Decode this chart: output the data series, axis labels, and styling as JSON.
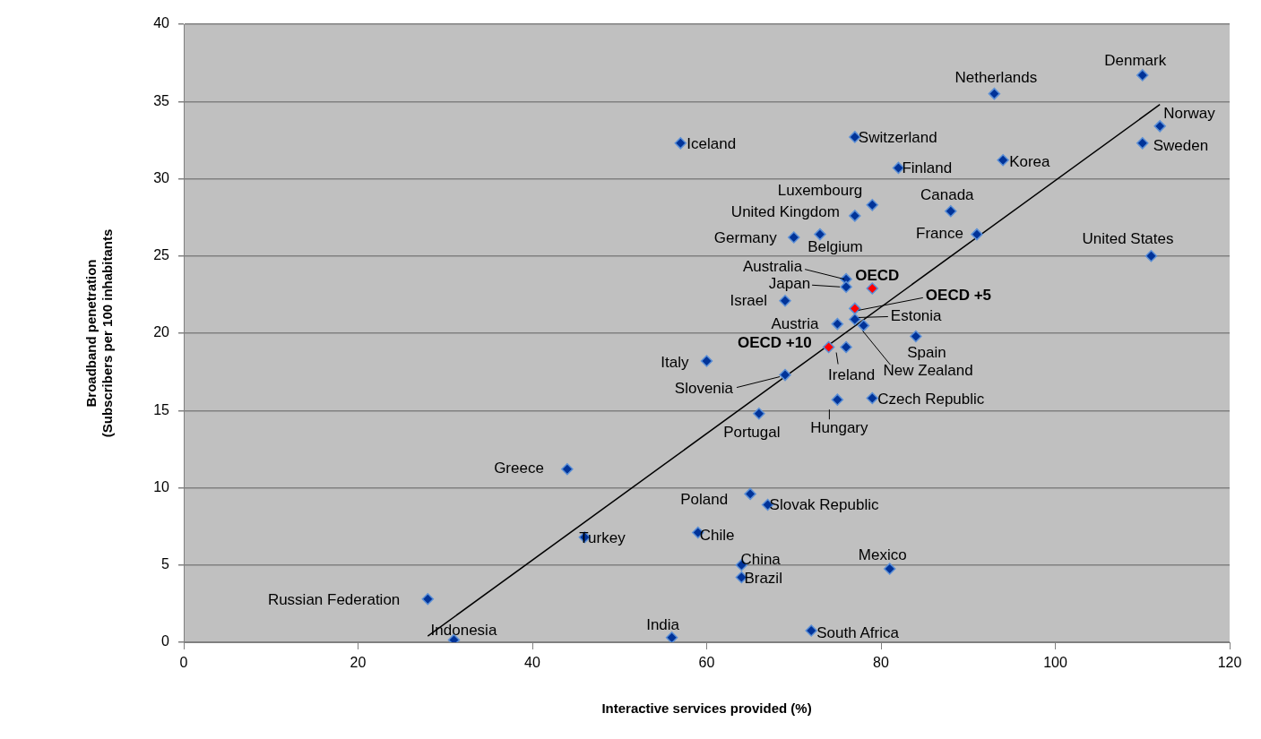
{
  "chart_data": {
    "type": "scatter",
    "xlabel": "Interactive services provided (%)",
    "ylabel": "Broadband penetration\n(Subscribers per 100 inhabitants",
    "xlim": [
      0,
      120
    ],
    "xticks": [
      0,
      20,
      40,
      60,
      80,
      100,
      120
    ],
    "ylim": [
      0,
      40
    ],
    "yticks": [
      0,
      5,
      10,
      15,
      20,
      25,
      30,
      35,
      40
    ],
    "grid": "y",
    "legend": false,
    "marker": "diamond",
    "series": [
      {
        "x": [
          110,
          93,
          112,
          110,
          57,
          77,
          94,
          82,
          79,
          88,
          77,
          70,
          73,
          91,
          111,
          76,
          76,
          79,
          69,
          77,
          77,
          75,
          78,
          84,
          74,
          76,
          60,
          69,
          79,
          75,
          66,
          44,
          65,
          67,
          46,
          59,
          64,
          64,
          81,
          28,
          31,
          56,
          72
        ],
        "values": [
          36.7,
          35.5,
          33.4,
          32.3,
          32.3,
          32.7,
          31.2,
          30.7,
          28.3,
          27.9,
          27.6,
          26.2,
          26.4,
          26.4,
          25.0,
          23.5,
          23.0,
          22.9,
          22.1,
          21.6,
          20.9,
          20.6,
          20.5,
          19.8,
          19.1,
          19.1,
          18.2,
          17.3,
          15.8,
          15.7,
          14.8,
          11.2,
          9.6,
          8.9,
          6.8,
          7.1,
          5.0,
          4.2,
          4.75,
          2.8,
          0.15,
          0.3,
          0.75
        ],
        "colors": [
          "#003399",
          "#003399",
          "#003399",
          "#003399",
          "#003399",
          "#003399",
          "#003399",
          "#003399",
          "#003399",
          "#003399",
          "#003399",
          "#003399",
          "#003399",
          "#003399",
          "#003399",
          "#003399",
          "#003399",
          "#ff0000",
          "#003399",
          "#ff0000",
          "#003399",
          "#003399",
          "#003399",
          "#003399",
          "#ff0000",
          "#003399",
          "#003399",
          "#003399",
          "#003399",
          "#003399",
          "#003399",
          "#003399",
          "#003399",
          "#003399",
          "#003399",
          "#003399",
          "#003399",
          "#003399",
          "#003399",
          "#003399",
          "#003399",
          "#003399",
          "#003399"
        ]
      },
      {
        "type": "line",
        "marker": "none",
        "color": "#000000",
        "x": [
          28,
          112
        ],
        "values": [
          0.4,
          34.8
        ]
      }
    ],
    "annotations": [
      {
        "text": "Denmark",
        "x": 110,
        "y": 36.7
      },
      {
        "text": "Netherlands",
        "x": 93,
        "y": 35.5
      },
      {
        "text": "Norway",
        "x": 112,
        "y": 33.4
      },
      {
        "text": "Sweden",
        "x": 110,
        "y": 32.3
      },
      {
        "text": "Iceland",
        "x": 57,
        "y": 32.3
      },
      {
        "text": "Switzerland",
        "x": 77,
        "y": 32.7
      },
      {
        "text": "Korea",
        "x": 94,
        "y": 31.2
      },
      {
        "text": "Finland",
        "x": 82,
        "y": 30.7
      },
      {
        "text": "Luxembourg",
        "x": 79,
        "y": 28.3
      },
      {
        "text": "Canada",
        "x": 88,
        "y": 27.9
      },
      {
        "text": "United Kingdom",
        "x": 77,
        "y": 27.6
      },
      {
        "text": "Germany",
        "x": 70,
        "y": 26.2
      },
      {
        "text": "Belgium",
        "x": 73,
        "y": 26.4
      },
      {
        "text": "France",
        "x": 91,
        "y": 26.4
      },
      {
        "text": "United States",
        "x": 111,
        "y": 25.0
      },
      {
        "text": "Australia",
        "x": 76,
        "y": 23.5
      },
      {
        "text": "Japan",
        "x": 76,
        "y": 23.0
      },
      {
        "text": "OECD",
        "x": 79,
        "y": 22.9
      },
      {
        "text": "Israel",
        "x": 69,
        "y": 22.1
      },
      {
        "text": "OECD +5",
        "x": 77,
        "y": 21.6
      },
      {
        "text": "Estonia",
        "x": 77,
        "y": 20.9
      },
      {
        "text": "Austria",
        "x": 75,
        "y": 20.6
      },
      {
        "text": "New Zealand",
        "x": 78,
        "y": 20.5
      },
      {
        "text": "Spain",
        "x": 84,
        "y": 19.8
      },
      {
        "text": "OECD +10",
        "x": 74,
        "y": 19.1
      },
      {
        "text": "Ireland",
        "x": 76,
        "y": 19.1
      },
      {
        "text": "Italy",
        "x": 60,
        "y": 18.2
      },
      {
        "text": "Slovenia",
        "x": 69,
        "y": 17.3
      },
      {
        "text": "Czech Republic",
        "x": 79,
        "y": 15.8
      },
      {
        "text": "Hungary",
        "x": 75,
        "y": 15.7
      },
      {
        "text": "Portugal",
        "x": 66,
        "y": 14.8
      },
      {
        "text": "Greece",
        "x": 44,
        "y": 11.2
      },
      {
        "text": "Poland",
        "x": 65,
        "y": 9.6
      },
      {
        "text": "Slovak Republic",
        "x": 67,
        "y": 8.9
      },
      {
        "text": "Turkey",
        "x": 46,
        "y": 6.8
      },
      {
        "text": "Chile",
        "x": 59,
        "y": 7.1
      },
      {
        "text": "China",
        "x": 64,
        "y": 5.0
      },
      {
        "text": "Brazil",
        "x": 64,
        "y": 4.2
      },
      {
        "text": "Mexico",
        "x": 81,
        "y": 4.75
      },
      {
        "text": "Russian Federation",
        "x": 28,
        "y": 2.8
      },
      {
        "text": "Indonesia",
        "x": 31,
        "y": 0.15
      },
      {
        "text": "India",
        "x": 56,
        "y": 0.3
      },
      {
        "text": "South Africa",
        "x": 72,
        "y": 0.75
      }
    ]
  }
}
